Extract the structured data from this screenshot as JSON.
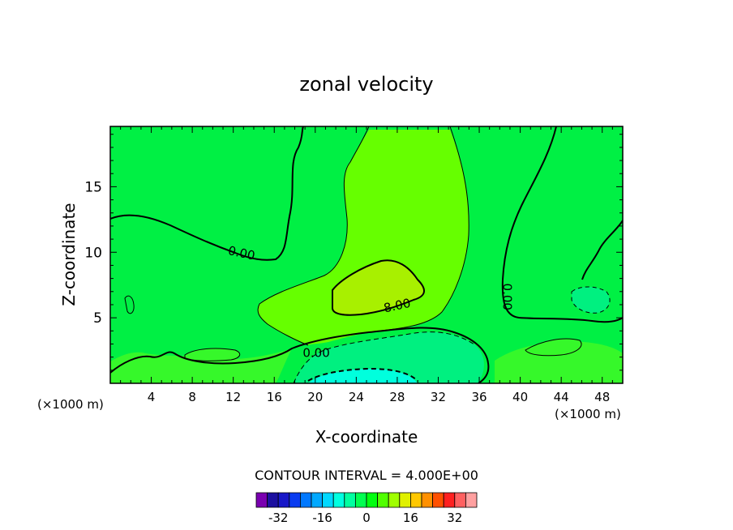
{
  "chart_data": {
    "type": "contour",
    "title": "zonal velocity",
    "xlabel": "X-coordinate",
    "ylabel": "Z-coordinate",
    "x_unit_left": "(×1000 m)",
    "x_unit_right": "(×1000 m)",
    "xlim": [
      0,
      50
    ],
    "ylim": [
      0,
      19.6
    ],
    "xticks": [
      4,
      8,
      12,
      16,
      20,
      24,
      28,
      32,
      36,
      40,
      44,
      48
    ],
    "xtick_labels": [
      "4",
      "8",
      "12",
      "16",
      "20",
      "24",
      "28",
      "32",
      "36",
      "40",
      "44",
      "48"
    ],
    "yticks": [
      5,
      10,
      15
    ],
    "ytick_labels": [
      "5",
      "10",
      "15"
    ],
    "contour_interval_text": "CONTOUR INTERVAL = 4.000E+00",
    "contour_labels": [
      {
        "text": "0.00",
        "x": 12.8,
        "z": 9.9
      },
      {
        "text": "8.00",
        "x": 28.0,
        "z": 5.9
      },
      {
        "text": "0.00",
        "x": 20.1,
        "z": 2.3
      },
      {
        "text": "0.00",
        "x": 38.7,
        "z": 6.6
      }
    ],
    "colorbar": {
      "levels": [
        -36,
        -32,
        -28,
        -24,
        -20,
        -16,
        -12,
        -8,
        -4,
        0,
        4,
        8,
        12,
        16,
        20,
        24,
        28,
        32,
        36
      ],
      "colors": [
        "#7a00b0",
        "#1c10a0",
        "#1818c8",
        "#0a3cf0",
        "#0078ff",
        "#00a8ff",
        "#00d8ff",
        "#00ffe0",
        "#00ffa0",
        "#00ff50",
        "#00ff10",
        "#50ff00",
        "#a0ff00",
        "#e0f000",
        "#ffc800",
        "#ff9000",
        "#ff5000",
        "#ff2020",
        "#ff6060",
        "#ffa0a0"
      ],
      "tick_values": [
        -32,
        -16,
        0,
        16,
        32
      ],
      "tick_labels": [
        "-32",
        "-16",
        "0",
        "16",
        "32"
      ]
    },
    "fill_colors": {
      "base": "#00f044",
      "weak_positive": "#36f82a",
      "positive": "#66ff00",
      "strong_positive": "#a8f000",
      "negative": "#00f080",
      "strong_negative": "#00ffdd"
    }
  }
}
